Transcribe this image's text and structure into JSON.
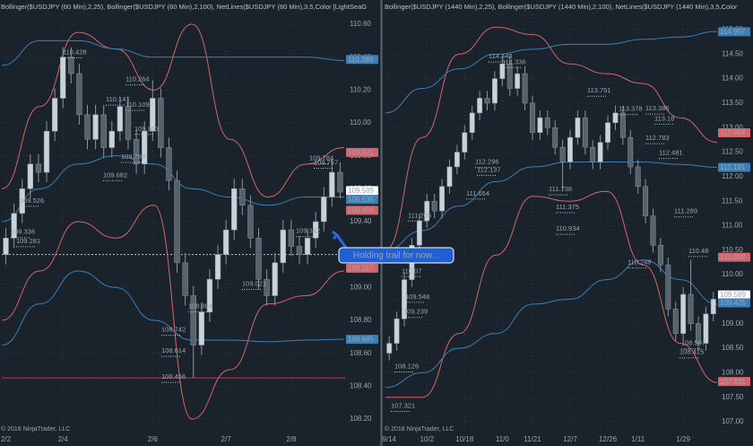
{
  "chart_data": [
    {
      "type": "candlestick",
      "title": "Bollinger($USDJPY (60 Min),2,25), Bollinger($USDJPY (60 Min),2,100), NetLines($USDJPY (60 Min),3,5,Color [LightSeaG",
      "categories": [
        "2/2",
        null,
        null,
        null,
        null,
        null,
        null,
        "2/4",
        null,
        null,
        null,
        null,
        null,
        null,
        null,
        null,
        null,
        null,
        "2/6",
        null,
        null,
        null,
        null,
        null,
        null,
        null,
        null,
        "2/7",
        null,
        null,
        null,
        null,
        null,
        null,
        null,
        "2/8",
        null,
        null,
        null,
        null,
        null,
        null
      ],
      "open": [
        109.2,
        109.3,
        109.45,
        109.6,
        109.75,
        109.7,
        109.95,
        110.15,
        110.4,
        110.3,
        110.05,
        109.9,
        110.05,
        109.85,
        109.95,
        110.1,
        109.9,
        109.75,
        109.95,
        110.15,
        109.85,
        109.65,
        109.15,
        108.95,
        108.65,
        108.85,
        109.05,
        109.2,
        109.35,
        109.6,
        109.5,
        109.3,
        109.05,
        108.95,
        109.15,
        109.35,
        109.25,
        109.2,
        109.3,
        109.4,
        109.55,
        109.7
      ],
      "high": [
        109.36,
        109.51,
        109.66,
        109.81,
        109.81,
        110.01,
        110.21,
        110.46,
        110.46,
        110.36,
        110.11,
        110.11,
        110.11,
        110.01,
        110.16,
        110.16,
        109.96,
        110.01,
        110.26,
        110.21,
        109.91,
        109.71,
        109.21,
        109.01,
        108.91,
        109.11,
        109.26,
        109.41,
        109.66,
        109.66,
        109.56,
        109.36,
        109.11,
        109.21,
        109.41,
        109.41,
        109.31,
        109.36,
        109.46,
        109.61,
        109.78,
        109.76
      ],
      "low": [
        109.14,
        109.24,
        109.39,
        109.54,
        109.64,
        109.64,
        109.89,
        110.09,
        110.24,
        109.99,
        109.84,
        109.84,
        109.79,
        109.79,
        109.89,
        109.84,
        109.69,
        109.69,
        109.89,
        109.79,
        109.59,
        109.09,
        108.89,
        108.45,
        108.59,
        108.79,
        108.99,
        109.14,
        109.29,
        109.44,
        109.24,
        108.99,
        108.89,
        108.89,
        109.09,
        109.19,
        109.14,
        109.14,
        109.24,
        109.34,
        109.49,
        109.54
      ],
      "close": [
        109.3,
        109.45,
        109.6,
        109.75,
        109.7,
        109.95,
        110.15,
        110.4,
        110.3,
        110.05,
        109.9,
        110.05,
        109.85,
        109.95,
        110.1,
        109.9,
        109.75,
        109.95,
        110.15,
        109.85,
        109.65,
        109.15,
        108.95,
        108.65,
        108.85,
        109.05,
        109.2,
        109.35,
        109.6,
        109.5,
        109.3,
        109.05,
        108.95,
        109.15,
        109.35,
        109.25,
        109.2,
        109.3,
        109.4,
        109.55,
        109.7,
        109.58
      ],
      "up_color": "#c9d2d4",
      "down_color": "#56626c",
      "overlays": [
        {
          "color": "#d4646a",
          "values": [
            109.6,
            110.1,
            110.55,
            110.45,
            110.2,
            110.6,
            109.9,
            109.55,
            109.75,
            109.85
          ]
        },
        {
          "color": "#d4646a",
          "values": [
            108.8,
            109.1,
            109.4,
            109.3,
            109.5,
            108.2,
            108.5,
            108.9,
            108.95,
            109.1
          ]
        },
        {
          "color": "#3a7fb8",
          "values": [
            110.35,
            110.5,
            110.5,
            110.45,
            110.4,
            110.4,
            110.4,
            110.4,
            110.4,
            110.38
          ]
        },
        {
          "color": "#3a7fb8",
          "values": [
            109.4,
            109.6,
            109.75,
            109.8,
            109.75,
            109.6,
            109.55,
            109.5,
            109.55,
            109.55
          ]
        },
        {
          "color": "#3a7fb8",
          "values": [
            108.65,
            108.9,
            109.1,
            109.0,
            108.8,
            108.68,
            108.68,
            108.67,
            108.68,
            108.685
          ]
        }
      ],
      "hlines": [
        {
          "value": 108.45,
          "color": "#e03030"
        },
        {
          "value": 109.2,
          "color": "#d8d040"
        }
      ],
      "ylim": [
        108.2,
        110.6
      ],
      "yticks": [
        {
          "value": 108.2,
          "label": "108.20"
        },
        {
          "value": 108.4,
          "label": "108.40"
        },
        {
          "value": 108.6,
          "label": "108.60"
        },
        {
          "value": 108.8,
          "label": "108.80"
        },
        {
          "value": 109.0,
          "label": "109.00"
        },
        {
          "value": 109.2,
          "label": "109.20"
        },
        {
          "value": 109.4,
          "label": "109.40"
        },
        {
          "value": 109.6,
          "label": "109.60"
        },
        {
          "value": 109.8,
          "label": "109.80"
        },
        {
          "value": 110.0,
          "label": "110.00"
        },
        {
          "value": 110.2,
          "label": "110.20"
        },
        {
          "value": 110.4,
          "label": "110.40"
        },
        {
          "value": 110.6,
          "label": "110.60"
        }
      ],
      "price_tags": [
        {
          "value": 110.386,
          "color": "#3a7fb8"
        },
        {
          "value": 109.821,
          "color": "#d4646a"
        },
        {
          "value": 109.589,
          "color": "#ffffff"
        },
        {
          "value": 109.535,
          "color": "#3a7fb8"
        },
        {
          "value": 109.469,
          "color": "#d4646a"
        },
        {
          "value": 109.117,
          "color": "#d4646a"
        },
        {
          "value": 108.685,
          "color": "#3a7fb8"
        }
      ],
      "annotations": [
        110.428,
        110.264,
        110.141,
        110.109,
        109.963,
        109.793,
        109.682,
        109.526,
        109.336,
        109.281,
        109.342,
        108.742,
        108.614,
        108.456,
        109.784,
        109.757,
        109.021,
        108.884
      ],
      "copyright": "© 2018 NinjaTrader, LLC"
    },
    {
      "type": "candlestick",
      "title": "Bollinger($USDJPY (1440 Min),2,25), Bollinger($USDJPY (1440 Min),2,100), NetLines($USDJPY (1440 Min),3,5,Color",
      "categories": [
        "9/14",
        null,
        null,
        null,
        null,
        "10/2",
        null,
        null,
        null,
        null,
        "10/18",
        null,
        null,
        null,
        null,
        "11/0",
        null,
        null,
        null,
        "11/21",
        null,
        null,
        null,
        null,
        "12/7",
        null,
        null,
        null,
        null,
        "12/26",
        null,
        null,
        null,
        "1/11",
        null,
        null,
        null,
        null,
        null,
        "1/29",
        null,
        null,
        null,
        null
      ],
      "open": [
        108.4,
        108.6,
        109.1,
        109.9,
        110.6,
        111.1,
        111.5,
        111.3,
        111.8,
        112.2,
        112.5,
        112.9,
        113.3,
        113.6,
        113.5,
        114.0,
        114.3,
        113.8,
        114.1,
        113.5,
        112.9,
        113.2,
        113.0,
        112.6,
        112.3,
        112.8,
        113.2,
        112.6,
        112.3,
        112.7,
        113.1,
        113.3,
        112.8,
        112.2,
        111.8,
        111.2,
        110.6,
        110.2,
        109.3,
        108.8,
        109.6,
        109.0,
        108.6,
        109.2
      ],
      "high": [
        108.75,
        109.25,
        110.05,
        110.75,
        111.25,
        111.65,
        111.65,
        111.95,
        112.35,
        112.65,
        113.05,
        113.45,
        113.75,
        113.75,
        114.15,
        114.45,
        114.45,
        114.25,
        114.25,
        113.65,
        113.35,
        113.35,
        113.15,
        112.75,
        112.95,
        113.35,
        113.35,
        112.75,
        112.85,
        113.25,
        113.45,
        113.45,
        112.95,
        112.35,
        111.95,
        111.35,
        110.75,
        110.35,
        109.45,
        109.75,
        110.3,
        109.15,
        109.35,
        109.65
      ],
      "low": [
        108.25,
        108.45,
        108.95,
        109.75,
        110.45,
        110.95,
        111.15,
        111.15,
        111.65,
        112.05,
        112.35,
        112.75,
        113.15,
        113.35,
        113.35,
        113.85,
        113.65,
        113.65,
        113.35,
        112.75,
        112.75,
        112.85,
        112.45,
        111.7,
        112.15,
        112.65,
        112.45,
        112.15,
        112.15,
        112.55,
        112.95,
        112.65,
        112.05,
        111.65,
        111.05,
        110.45,
        110.05,
        109.15,
        108.65,
        108.65,
        108.85,
        108.45,
        108.45,
        109.05
      ],
      "close": [
        108.6,
        109.1,
        109.9,
        110.6,
        111.1,
        111.5,
        111.3,
        111.8,
        112.2,
        112.5,
        112.9,
        113.3,
        113.6,
        113.5,
        114.0,
        114.3,
        113.8,
        114.1,
        113.5,
        112.9,
        113.2,
        113.0,
        112.6,
        112.3,
        112.8,
        113.2,
        112.6,
        112.3,
        112.7,
        113.1,
        113.3,
        112.8,
        112.2,
        111.8,
        111.2,
        110.6,
        110.2,
        109.3,
        108.8,
        109.6,
        109.0,
        108.6,
        109.2,
        109.5
      ],
      "up_color": "#c9d2d4",
      "down_color": "#56626c",
      "overlays": [
        {
          "color": "#d4646a",
          "values": [
            110.5,
            112.8,
            114.5,
            115.05,
            114.9,
            114.3,
            114.1,
            113.9,
            113.2,
            112.7
          ]
        },
        {
          "color": "#d4646a",
          "values": [
            107.5,
            107.5,
            108.8,
            110.4,
            111.6,
            111.5,
            111.7,
            110.2,
            108.6,
            107.8
          ]
        },
        {
          "color": "#3a7fb8",
          "values": [
            113.3,
            113.8,
            114.2,
            114.5,
            114.6,
            114.7,
            114.7,
            114.8,
            114.85,
            114.96
          ]
        },
        {
          "color": "#3a7fb8",
          "values": [
            110.5,
            110.9,
            111.4,
            111.9,
            112.2,
            112.3,
            112.3,
            112.3,
            112.25,
            112.19
          ]
        },
        {
          "color": "#3a7fb8",
          "values": [
            107.7,
            108.0,
            108.5,
            108.8,
            109.4,
            109.5,
            109.9,
            110.3,
            109.9,
            109.4
          ]
        }
      ],
      "hlines": [],
      "ylim": [
        107,
        115
      ],
      "yticks": [
        {
          "value": 107,
          "label": "107.00"
        },
        {
          "value": 107.5,
          "label": "107.50"
        },
        {
          "value": 108,
          "label": "108.00"
        },
        {
          "value": 108.5,
          "label": "108.50"
        },
        {
          "value": 109,
          "label": "109.00"
        },
        {
          "value": 109.5,
          "label": "109.50"
        },
        {
          "value": 110,
          "label": "110.00"
        },
        {
          "value": 110.5,
          "label": "110.50"
        },
        {
          "value": 111,
          "label": "111.00"
        },
        {
          "value": 111.5,
          "label": "111.50"
        },
        {
          "value": 112,
          "label": "112.00"
        },
        {
          "value": 112.5,
          "label": "112.50"
        },
        {
          "value": 113,
          "label": "113.00"
        },
        {
          "value": 113.5,
          "label": "113.50"
        },
        {
          "value": 114,
          "label": "114.00"
        },
        {
          "value": 114.5,
          "label": "114.50"
        },
        {
          "value": 115,
          "label": "115.00"
        }
      ],
      "price_tags": [
        {
          "value": 114.957,
          "color": "#3a7fb8"
        },
        {
          "value": 112.894,
          "color": "#d4646a"
        },
        {
          "value": 112.191,
          "color": "#3a7fb8"
        },
        {
          "value": 110.358,
          "color": "#d4646a"
        },
        {
          "value": 109.589,
          "color": "#ffffff"
        },
        {
          "value": 109.425,
          "color": "#3a7fb8"
        },
        {
          "value": 107.821,
          "color": "#d4646a"
        }
      ],
      "annotations": [
        114.448,
        114.336,
        113.751,
        113.378,
        113.386,
        113.18,
        112.783,
        112.481,
        112.296,
        112.137,
        111.738,
        111.654,
        111.375,
        111.205,
        110.934,
        110.07,
        109.548,
        109.239,
        108.126,
        107.321,
        110.48,
        110.248,
        108.597,
        108.415,
        111.289
      ],
      "copyright": "© 2018 NinjaTrader, LLC"
    }
  ],
  "callout": "Holding trail for now..."
}
